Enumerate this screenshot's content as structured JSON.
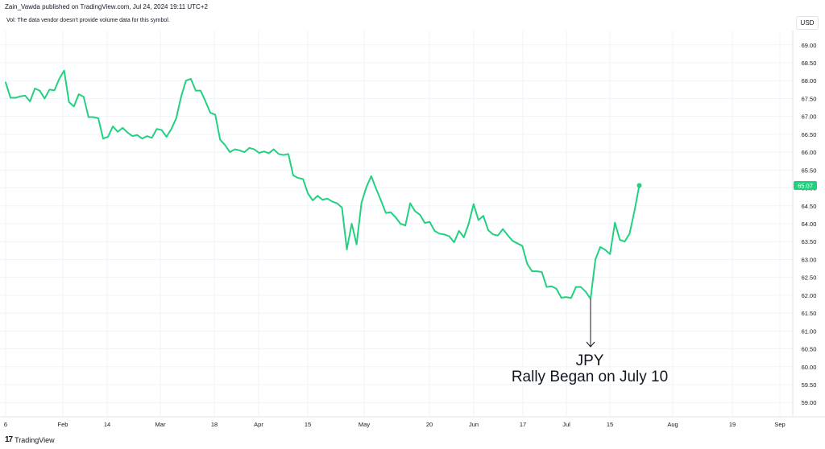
{
  "header": {
    "published": "Zain_Vawda published on TradingView.com, Jul 24, 2024 19:11 UTC+2",
    "vol_note": "Vol: The data vendor doesn't provide volume data for this symbol.",
    "currency": "USD"
  },
  "footer": {
    "logo_mark": "17",
    "brand": "TradingView"
  },
  "colors": {
    "line": "#22d17f",
    "grid": "#f0f3fa",
    "price_badge": "#22d17f"
  },
  "chart_data": {
    "type": "line",
    "series": [
      {
        "values": [
          67.95,
          67.52,
          67.52,
          67.56,
          67.58,
          67.42,
          67.78,
          67.72,
          67.5,
          67.75,
          67.73,
          68.05,
          68.28,
          67.4,
          67.28,
          67.62,
          67.55,
          66.98,
          66.98,
          66.95,
          66.38,
          66.43,
          66.72,
          66.57,
          66.68,
          66.55,
          66.45,
          66.48,
          66.38,
          66.45,
          66.4,
          66.65,
          66.62,
          66.43,
          66.65,
          66.95,
          67.55,
          68.0,
          68.05,
          67.72,
          67.72,
          67.42,
          67.1,
          67.05,
          66.35,
          66.2,
          66.0,
          66.08,
          66.05,
          66.0,
          66.12,
          66.08,
          65.98,
          66.02,
          65.97,
          66.08,
          65.95,
          65.92,
          65.95,
          65.35,
          65.28,
          65.25,
          64.85,
          64.65,
          64.78,
          64.67,
          64.7,
          64.62,
          64.57,
          64.45,
          63.28,
          64.0,
          63.42,
          64.58,
          65.02,
          65.33,
          64.98,
          64.65,
          64.3,
          64.32,
          64.18,
          64.0,
          63.95,
          64.57,
          64.35,
          64.25,
          64.02,
          64.05,
          63.8,
          63.72,
          63.7,
          63.65,
          63.48,
          63.8,
          63.62,
          64.0,
          64.55,
          64.1,
          64.22,
          63.82,
          63.7,
          63.67,
          63.85,
          63.68,
          63.52,
          63.45,
          63.38,
          62.88,
          62.67,
          62.67,
          62.65,
          62.23,
          62.25,
          62.18,
          61.93,
          61.95,
          61.92,
          62.23,
          62.23,
          62.1,
          61.9,
          63.0,
          63.35,
          63.27,
          63.15,
          64.03,
          63.55,
          63.5,
          63.72,
          64.35,
          65.07
        ]
      }
    ],
    "last_value_label": "65.07",
    "y_ticks": [
      "69.00",
      "68.50",
      "68.00",
      "67.50",
      "67.00",
      "66.50",
      "66.00",
      "65.50",
      "65.00",
      "64.50",
      "64.00",
      "63.50",
      "63.00",
      "62.50",
      "62.00",
      "61.50",
      "61.00",
      "60.50",
      "60.00",
      "59.50",
      "59.00"
    ],
    "x_ticks": [
      "6",
      "Feb",
      "14",
      "Mar",
      "18",
      "Apr",
      "15",
      "May",
      "20",
      "Jun",
      "17",
      "Jul",
      "15",
      "Aug",
      "19",
      "Sep"
    ],
    "annotation": {
      "line1": "JPY",
      "line2": "Rally Began on July 10"
    },
    "grid": true,
    "ylim": [
      58.6,
      69.4
    ]
  }
}
